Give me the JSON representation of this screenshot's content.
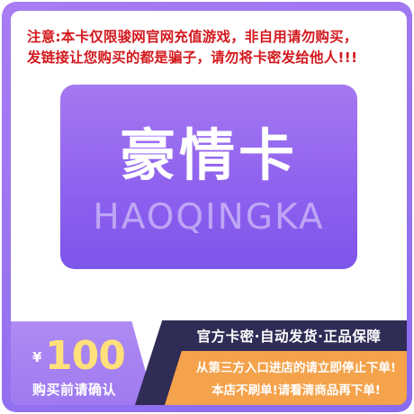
{
  "notice": {
    "line1": "注意:本卡仅限骏网官网充值游戏，非自用请勿购买，",
    "line2": "发链接让您购买的都是骗子，请勿将卡密发给他人!!!"
  },
  "card": {
    "title": "豪情卡",
    "subtitle": "HAOQINGKA"
  },
  "price": {
    "currency": "¥",
    "amount": "100",
    "confirm_label": "购买前请确认"
  },
  "guarantee": "官方卡密·自动发货·正品保障",
  "warnings": {
    "line1": "从第三方入口进店的请立即停止下单!",
    "line2": "本店不刷单!请看清商品再下单!"
  },
  "colors": {
    "frame": "#9a72f1",
    "notice_text": "#d3191e",
    "price_text": "#ffe07a",
    "dark_panel": "#2f2c55",
    "orange_panel": "#f4a24b"
  }
}
